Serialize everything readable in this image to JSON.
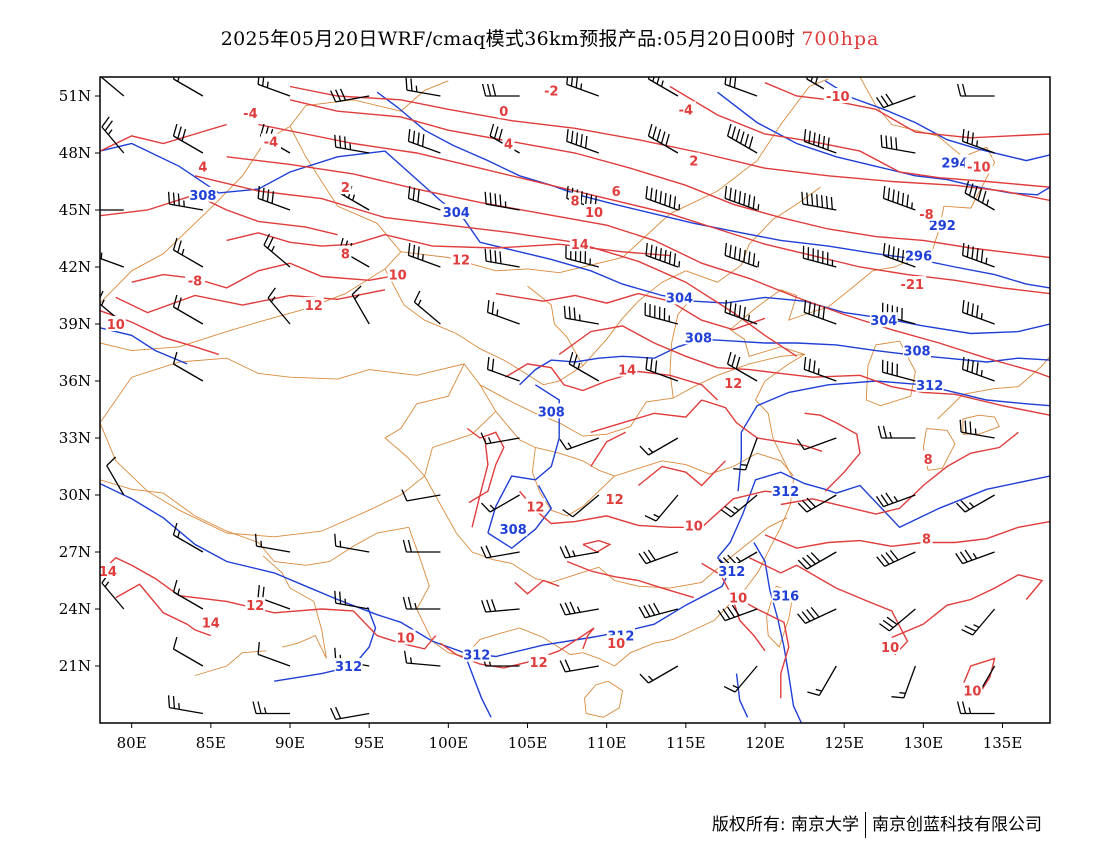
{
  "title": {
    "text": "2025年05月20日WRF/cmaq模式36km预报产品:05月20日00时",
    "level": "700hpa",
    "level_color": "#e03c3c"
  },
  "map": {
    "lon_range": [
      78,
      138
    ],
    "lat_range": [
      18,
      52
    ],
    "lon_ticks": [
      {
        "value": 80,
        "label": "80E"
      },
      {
        "value": 85,
        "label": "85E"
      },
      {
        "value": 90,
        "label": "90E"
      },
      {
        "value": 95,
        "label": "95E"
      },
      {
        "value": 100,
        "label": "100E"
      },
      {
        "value": 105,
        "label": "105E"
      },
      {
        "value": 110,
        "label": "110E"
      },
      {
        "value": 115,
        "label": "115E"
      },
      {
        "value": 120,
        "label": "120E"
      },
      {
        "value": 125,
        "label": "125E"
      },
      {
        "value": 130,
        "label": "130E"
      },
      {
        "value": 135,
        "label": "135E"
      }
    ],
    "lat_ticks": [
      {
        "value": 51,
        "label": "51N"
      },
      {
        "value": 48,
        "label": "48N"
      },
      {
        "value": 45,
        "label": "45N"
      },
      {
        "value": 42,
        "label": "42N"
      },
      {
        "value": 39,
        "label": "39N"
      },
      {
        "value": 36,
        "label": "36N"
      },
      {
        "value": 33,
        "label": "33N"
      },
      {
        "value": 30,
        "label": "30N"
      },
      {
        "value": 27,
        "label": "27N"
      },
      {
        "value": 24,
        "label": "24N"
      },
      {
        "value": 21,
        "label": "21N"
      }
    ],
    "colors": {
      "temperature": "#e03c3c",
      "geopotential": "#1f3fd6",
      "boundary": "#d98a3d",
      "wind": "#000000"
    },
    "temperature_labels": [
      {
        "text": "-4",
        "lon": 87.5,
        "lat": 50.1
      },
      {
        "text": "-2",
        "lon": 106.5,
        "lat": 51.3
      },
      {
        "text": "0",
        "lon": 103.5,
        "lat": 50.2
      },
      {
        "text": "-4",
        "lon": 88.8,
        "lat": 48.6
      },
      {
        "text": "4",
        "lon": 84.5,
        "lat": 47.3
      },
      {
        "text": "2",
        "lon": 93.5,
        "lat": 46.2
      },
      {
        "text": "4",
        "lon": 103.8,
        "lat": 48.5
      },
      {
        "text": "-4",
        "lon": 115.0,
        "lat": 50.3
      },
      {
        "text": "-10",
        "lon": 124.6,
        "lat": 51.0
      },
      {
        "text": "2",
        "lon": 115.5,
        "lat": 47.6
      },
      {
        "text": "6",
        "lon": 110.6,
        "lat": 46.0
      },
      {
        "text": "8",
        "lon": 108.0,
        "lat": 45.5
      },
      {
        "text": "10",
        "lon": 109.2,
        "lat": 44.9
      },
      {
        "text": "-10",
        "lon": 133.5,
        "lat": 47.3
      },
      {
        "text": "-8",
        "lon": 130.2,
        "lat": 44.8
      },
      {
        "text": "8",
        "lon": 93.5,
        "lat": 42.7
      },
      {
        "text": "14",
        "lon": 108.3,
        "lat": 43.2
      },
      {
        "text": "12",
        "lon": 100.8,
        "lat": 42.4
      },
      {
        "text": "10",
        "lon": 96.8,
        "lat": 41.6
      },
      {
        "text": "-21",
        "lon": 129.3,
        "lat": 41.1
      },
      {
        "text": "-8",
        "lon": 84.0,
        "lat": 41.3
      },
      {
        "text": "12",
        "lon": 91.5,
        "lat": 40.0
      },
      {
        "text": "10",
        "lon": 79.0,
        "lat": 39.0
      },
      {
        "text": "14",
        "lon": 111.3,
        "lat": 36.6
      },
      {
        "text": "12",
        "lon": 118.0,
        "lat": 35.9
      },
      {
        "text": "8",
        "lon": 130.3,
        "lat": 31.9
      },
      {
        "text": "12",
        "lon": 105.5,
        "lat": 29.4
      },
      {
        "text": "12",
        "lon": 110.5,
        "lat": 29.8
      },
      {
        "text": "10",
        "lon": 115.5,
        "lat": 28.4
      },
      {
        "text": "8",
        "lon": 130.2,
        "lat": 27.7
      },
      {
        "text": "14",
        "lon": 78.5,
        "lat": 26.0
      },
      {
        "text": "12",
        "lon": 87.8,
        "lat": 24.2
      },
      {
        "text": "14",
        "lon": 85.0,
        "lat": 23.3
      },
      {
        "text": "10",
        "lon": 97.3,
        "lat": 22.5
      },
      {
        "text": "10",
        "lon": 110.6,
        "lat": 22.2
      },
      {
        "text": "10",
        "lon": 118.3,
        "lat": 24.6
      },
      {
        "text": "10",
        "lon": 127.9,
        "lat": 22.0
      },
      {
        "text": "12",
        "lon": 105.7,
        "lat": 21.2
      },
      {
        "text": "10",
        "lon": 133.1,
        "lat": 19.7
      }
    ],
    "geopotential_labels": [
      {
        "text": "308",
        "lon": 84.5,
        "lat": 45.8
      },
      {
        "text": "304",
        "lon": 100.5,
        "lat": 44.9
      },
      {
        "text": "304",
        "lon": 114.6,
        "lat": 40.4
      },
      {
        "text": "294",
        "lon": 132.0,
        "lat": 47.5
      },
      {
        "text": "292",
        "lon": 131.2,
        "lat": 44.2
      },
      {
        "text": "296",
        "lon": 129.7,
        "lat": 42.6
      },
      {
        "text": "304",
        "lon": 127.5,
        "lat": 39.2
      },
      {
        "text": "308",
        "lon": 115.8,
        "lat": 38.3
      },
      {
        "text": "308",
        "lon": 129.6,
        "lat": 37.6
      },
      {
        "text": "312",
        "lon": 130.4,
        "lat": 35.8
      },
      {
        "text": "308",
        "lon": 106.5,
        "lat": 34.4
      },
      {
        "text": "312",
        "lon": 121.3,
        "lat": 30.2
      },
      {
        "text": "308",
        "lon": 104.1,
        "lat": 28.2
      },
      {
        "text": "312",
        "lon": 117.9,
        "lat": 26.0
      },
      {
        "text": "316",
        "lon": 121.3,
        "lat": 24.7
      },
      {
        "text": "312",
        "lon": 110.9,
        "lat": 22.6
      },
      {
        "text": "312",
        "lon": 101.8,
        "lat": 21.6
      },
      {
        "text": "312",
        "lon": 93.7,
        "lat": 21.0
      }
    ]
  },
  "footer": {
    "left": "版权所有: 南京大学",
    "right": "南京创蓝科技有限公司"
  }
}
